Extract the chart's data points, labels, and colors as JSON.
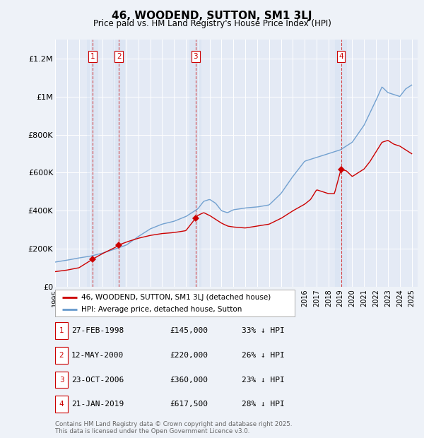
{
  "title": "46, WOODEND, SUTTON, SM1 3LJ",
  "subtitle": "Price paid vs. HM Land Registry's House Price Index (HPI)",
  "bg_color": "#eef2f8",
  "plot_bg_color": "#e4eaf5",
  "ylim": [
    0,
    1300000
  ],
  "yticks": [
    0,
    200000,
    400000,
    600000,
    800000,
    1000000,
    1200000
  ],
  "ytick_labels": [
    "£0",
    "£200K",
    "£400K",
    "£600K",
    "£800K",
    "£1M",
    "£1.2M"
  ],
  "transactions": [
    {
      "num": 1,
      "date": "27-FEB-1998",
      "year": 1998.15,
      "price": 145000,
      "label": "33% ↓ HPI"
    },
    {
      "num": 2,
      "date": "12-MAY-2000",
      "year": 2000.37,
      "price": 220000,
      "label": "26% ↓ HPI"
    },
    {
      "num": 3,
      "date": "23-OCT-2006",
      "year": 2006.81,
      "price": 360000,
      "label": "23% ↓ HPI"
    },
    {
      "num": 4,
      "date": "21-JAN-2019",
      "year": 2019.05,
      "price": 617500,
      "label": "28% ↓ HPI"
    }
  ],
  "red_line_color": "#cc0000",
  "blue_line_color": "#6699cc",
  "dashed_line_color": "#cc0000",
  "marker_color": "#cc0000",
  "legend_label_red": "46, WOODEND, SUTTON, SM1 3LJ (detached house)",
  "legend_label_blue": "HPI: Average price, detached house, Sutton",
  "footer": "Contains HM Land Registry data © Crown copyright and database right 2025.\nThis data is licensed under the Open Government Licence v3.0.",
  "xmin": 1995,
  "xmax": 2025.5
}
